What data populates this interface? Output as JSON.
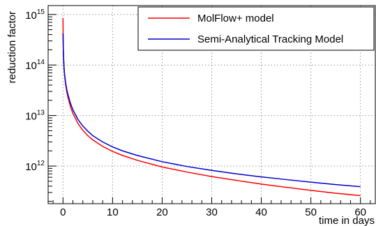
{
  "chart_data": {
    "type": "line",
    "title": "",
    "xlabel": "time in days",
    "ylabel": "reduction factor",
    "xlim": [
      -3,
      63
    ],
    "ylim": [
      180000000000.0,
      1500000000000000.0
    ],
    "yscale": "log",
    "grid": true,
    "grid_style": "dotted",
    "legend_position": "top-right",
    "x_ticks": [
      {
        "value": 0,
        "label": "0"
      },
      {
        "value": 10,
        "label": "10"
      },
      {
        "value": 20,
        "label": "20"
      },
      {
        "value": 30,
        "label": "30"
      },
      {
        "value": 40,
        "label": "40"
      },
      {
        "value": 50,
        "label": "50"
      },
      {
        "value": 60,
        "label": "60"
      }
    ],
    "y_ticks": [
      {
        "value": 1000000000000.0,
        "base": "10",
        "exp": "12"
      },
      {
        "value": 10000000000000.0,
        "base": "10",
        "exp": "13"
      },
      {
        "value": 100000000000000.0,
        "base": "10",
        "exp": "14"
      },
      {
        "value": 1000000000000000.0,
        "base": "10",
        "exp": "15"
      }
    ],
    "series": [
      {
        "name": "MolFlow+ model",
        "color": "#ff0000",
        "x": [
          0,
          0.05,
          0.1,
          0.2,
          0.3,
          0.5,
          0.75,
          1,
          1.5,
          2,
          3,
          4,
          5,
          6,
          8,
          10,
          12,
          15,
          20,
          25,
          30,
          35,
          40,
          45,
          50,
          55,
          60
        ],
        "y": [
          850000000000000.0,
          250000000000000.0,
          160000000000000.0,
          90000000000000.0,
          65000000000000.0,
          43000000000000.0,
          30000000000000.0,
          23000000000000.0,
          15000000000000.0,
          11000000000000.0,
          7000000000000.0,
          5100000000000.0,
          4000000000000.0,
          3300000000000.0,
          2450000000000.0,
          1950000000000.0,
          1620000000000.0,
          1300000000000.0,
          960000000000.0,
          760000000000.0,
          620000000000.0,
          520000000000.0,
          440000000000.0,
          380000000000.0,
          330000000000.0,
          290000000000.0,
          260000000000.0
        ]
      },
      {
        "name": "Semi-Analytical Tracking Model",
        "color": "#0000cc",
        "x": [
          0,
          0.05,
          0.1,
          0.2,
          0.3,
          0.5,
          0.75,
          1,
          1.5,
          2,
          3,
          4,
          5,
          6,
          8,
          10,
          12,
          15,
          20,
          25,
          30,
          35,
          40,
          45,
          50,
          55,
          60
        ],
        "y": [
          420000000000000.0,
          230000000000000.0,
          150000000000000.0,
          92000000000000.0,
          68000000000000.0,
          46000000000000.0,
          33000000000000.0,
          26000000000000.0,
          17500000000000.0,
          13000000000000.0,
          8400000000000.0,
          6200000000000.0,
          4900000000000.0,
          4000000000000.0,
          3000000000000.0,
          2400000000000.0,
          2000000000000.0,
          1620000000000.0,
          1220000000000.0,
          980000000000.0,
          820000000000.0,
          700000000000.0,
          610000000000.0,
          540000000000.0,
          480000000000.0,
          430000000000.0,
          390000000000.0
        ]
      }
    ]
  }
}
